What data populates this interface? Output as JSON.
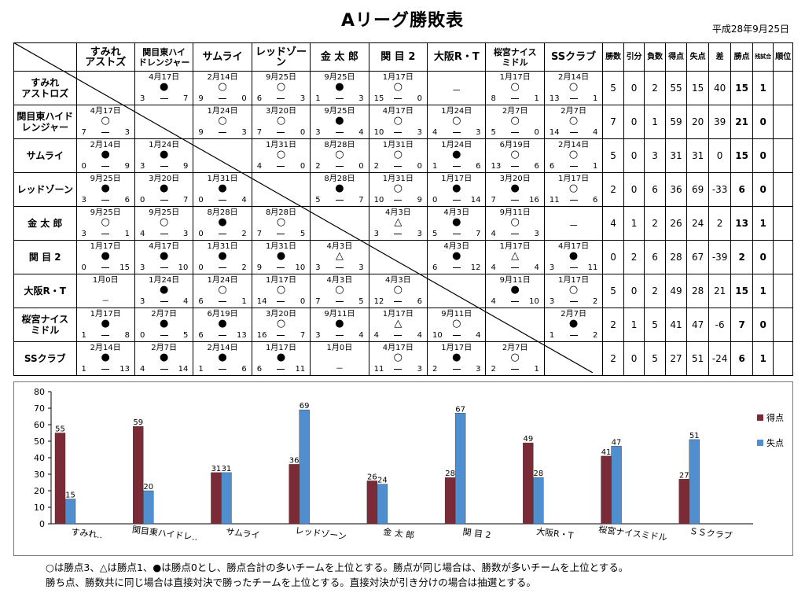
{
  "title": "Aリーグ勝敗表",
  "date": "平成28年9月25日",
  "columns": [
    "すみれ\nアストズ",
    "関目東ハイ\nドレンジャー",
    "サムライ",
    "レッドゾーン",
    "金 太 郎",
    "関 目 2",
    "大阪R・T",
    "桜宮ナイス\nミドル",
    "SSクラブ"
  ],
  "stat_headers": [
    "勝数",
    "引分",
    "負数",
    "得点",
    "失点",
    "差",
    "勝点",
    "残試合",
    "順位"
  ],
  "teams": [
    {
      "name": "すみれ\nアストロズ",
      "cells": [
        null,
        {
          "date": "4月17日",
          "mark": "●",
          "l": "3",
          "r": "7"
        },
        {
          "date": "2月14日",
          "mark": "○",
          "l": "9",
          "r": "0"
        },
        {
          "date": "9月25日",
          "mark": "○",
          "l": "6",
          "r": "3"
        },
        {
          "date": "9月25日",
          "mark": "●",
          "l": "1",
          "r": "3"
        },
        {
          "date": "1月17日",
          "mark": "○",
          "l": "15",
          "r": "0"
        },
        {
          "center": "－"
        },
        {
          "date": "1月17日",
          "mark": "○",
          "l": "8",
          "r": "1"
        },
        {
          "date": "2月14日",
          "mark": "○",
          "l": "13",
          "r": "1"
        }
      ],
      "stats": [
        "5",
        "0",
        "2",
        "55",
        "15",
        "40",
        "15",
        "1",
        ""
      ]
    },
    {
      "name": "関目東ハイド\nレンジャー",
      "cells": [
        {
          "date": "4月17日",
          "mark": "○",
          "l": "7",
          "r": "3"
        },
        null,
        {
          "date": "1月24日",
          "mark": "○",
          "l": "9",
          "r": "3"
        },
        {
          "date": "3月20日",
          "mark": "○",
          "l": "7",
          "r": "0"
        },
        {
          "date": "9月25日",
          "mark": "●",
          "l": "3",
          "r": "4"
        },
        {
          "date": "4月17日",
          "mark": "○",
          "l": "10",
          "r": "3"
        },
        {
          "date": "1月24日",
          "mark": "○",
          "l": "4",
          "r": "3"
        },
        {
          "date": "2月7日",
          "mark": "○",
          "l": "5",
          "r": "0"
        },
        {
          "date": "2月7日",
          "mark": "○",
          "l": "14",
          "r": "4"
        }
      ],
      "stats": [
        "7",
        "0",
        "1",
        "59",
        "20",
        "39",
        "21",
        "0",
        ""
      ]
    },
    {
      "name": "サムライ",
      "cells": [
        {
          "date": "2月14日",
          "mark": "●",
          "l": "0",
          "r": "9"
        },
        {
          "date": "1月24日",
          "mark": "●",
          "l": "3",
          "r": "9"
        },
        null,
        {
          "date": "1月31日",
          "mark": "○",
          "l": "4",
          "r": "0"
        },
        {
          "date": "8月28日",
          "mark": "○",
          "l": "2",
          "r": "0"
        },
        {
          "date": "1月31日",
          "mark": "○",
          "l": "2",
          "r": "0"
        },
        {
          "date": "1月24日",
          "mark": "●",
          "l": "1",
          "r": "6"
        },
        {
          "date": "6月19日",
          "mark": "○",
          "l": "13",
          "r": "6"
        },
        {
          "date": "2月14日",
          "mark": "○",
          "l": "6",
          "r": "1"
        }
      ],
      "stats": [
        "5",
        "0",
        "3",
        "31",
        "31",
        "0",
        "15",
        "0",
        ""
      ]
    },
    {
      "name": "レッドゾーン",
      "cells": [
        {
          "date": "9月25日",
          "mark": "●",
          "l": "3",
          "r": "6"
        },
        {
          "date": "3月20日",
          "mark": "●",
          "l": "0",
          "r": "7"
        },
        {
          "date": "1月31日",
          "mark": "●",
          "l": "0",
          "r": "4"
        },
        null,
        {
          "date": "8月28日",
          "mark": "●",
          "l": "5",
          "r": "7"
        },
        {
          "date": "1月31日",
          "mark": "○",
          "l": "10",
          "r": "9"
        },
        {
          "date": "1月17日",
          "mark": "●",
          "l": "0",
          "r": "14"
        },
        {
          "date": "3月20日",
          "mark": "●",
          "l": "7",
          "r": "16"
        },
        {
          "date": "1月17日",
          "mark": "○",
          "l": "11",
          "r": "6"
        }
      ],
      "stats": [
        "2",
        "0",
        "6",
        "36",
        "69",
        "-33",
        "6",
        "0",
        ""
      ]
    },
    {
      "name": "金 太 郎",
      "cells": [
        {
          "date": "9月25日",
          "mark": "○",
          "l": "3",
          "r": "1"
        },
        {
          "date": "9月25日",
          "mark": "○",
          "l": "4",
          "r": "3"
        },
        {
          "date": "8月28日",
          "mark": "●",
          "l": "0",
          "r": "2"
        },
        {
          "date": "8月28日",
          "mark": "○",
          "l": "7",
          "r": "5"
        },
        null,
        {
          "date": "4月3日",
          "mark": "△",
          "l": "3",
          "r": "3"
        },
        {
          "date": "4月3日",
          "mark": "●",
          "l": "5",
          "r": "7"
        },
        {
          "date": "9月11日",
          "mark": "○",
          "l": "4",
          "r": "3"
        },
        {
          "center": "－"
        }
      ],
      "stats": [
        "4",
        "1",
        "2",
        "26",
        "24",
        "2",
        "13",
        "1",
        ""
      ]
    },
    {
      "name": "関 目 2",
      "cells": [
        {
          "date": "1月17日",
          "mark": "●",
          "l": "0",
          "r": "15"
        },
        {
          "date": "4月17日",
          "mark": "●",
          "l": "3",
          "r": "10"
        },
        {
          "date": "1月31日",
          "mark": "●",
          "l": "0",
          "r": "2"
        },
        {
          "date": "1月31日",
          "mark": "●",
          "l": "9",
          "r": "10"
        },
        {
          "date": "4月3日",
          "mark": "△",
          "l": "3",
          "r": "3"
        },
        null,
        {
          "date": "4月3日",
          "mark": "●",
          "l": "6",
          "r": "12"
        },
        {
          "date": "1月17日",
          "mark": "△",
          "l": "4",
          "r": "4"
        },
        {
          "date": "4月17日",
          "mark": "●",
          "l": "3",
          "r": "11"
        }
      ],
      "stats": [
        "0",
        "2",
        "6",
        "28",
        "67",
        "-39",
        "2",
        "0",
        ""
      ]
    },
    {
      "name": "大阪R・T",
      "cells": [
        {
          "date": "1月0日",
          "dashonly": "－"
        },
        {
          "date": "1月24日",
          "mark": "●",
          "l": "3",
          "r": "4"
        },
        {
          "date": "1月24日",
          "mark": "○",
          "l": "6",
          "r": "1"
        },
        {
          "date": "1月17日",
          "mark": "○",
          "l": "14",
          "r": "0"
        },
        {
          "date": "4月3日",
          "mark": "○",
          "l": "7",
          "r": "5"
        },
        {
          "date": "4月3日",
          "mark": "○",
          "l": "12",
          "r": "6"
        },
        null,
        {
          "date": "9月11日",
          "mark": "●",
          "l": "4",
          "r": "10"
        },
        {
          "date": "1月17日",
          "mark": "○",
          "l": "3",
          "r": "2"
        }
      ],
      "stats": [
        "5",
        "0",
        "2",
        "49",
        "28",
        "21",
        "15",
        "1",
        ""
      ]
    },
    {
      "name": "桜宮ナイス\nミドル",
      "cells": [
        {
          "date": "1月17日",
          "mark": "●",
          "l": "1",
          "r": "8"
        },
        {
          "date": "2月7日",
          "mark": "●",
          "l": "0",
          "r": "5"
        },
        {
          "date": "6月19日",
          "mark": "●",
          "l": "6",
          "r": "13"
        },
        {
          "date": "3月20日",
          "mark": "○",
          "l": "16",
          "r": "7"
        },
        {
          "date": "9月11日",
          "mark": "●",
          "l": "3",
          "r": "4"
        },
        {
          "date": "1月17日",
          "mark": "△",
          "l": "4",
          "r": "4"
        },
        {
          "date": "9月11日",
          "mark": "○",
          "l": "10",
          "r": "4"
        },
        null,
        {
          "date": "2月7日",
          "mark": "●",
          "l": "1",
          "r": "2"
        }
      ],
      "stats": [
        "2",
        "1",
        "5",
        "41",
        "47",
        "-6",
        "7",
        "0",
        ""
      ]
    },
    {
      "name": "SSクラブ",
      "cells": [
        {
          "date": "2月14日",
          "mark": "●",
          "l": "1",
          "r": "13"
        },
        {
          "date": "2月7日",
          "mark": "●",
          "l": "4",
          "r": "14"
        },
        {
          "date": "2月14日",
          "mark": "●",
          "l": "1",
          "r": "6"
        },
        {
          "date": "1月17日",
          "mark": "●",
          "l": "6",
          "r": "11"
        },
        {
          "date": "1月0日",
          "dashonly": "－"
        },
        {
          "date": "4月17日",
          "mark": "○",
          "l": "11",
          "r": "3"
        },
        {
          "date": "1月17日",
          "mark": "●",
          "l": "2",
          "r": "3"
        },
        {
          "date": "2月7日",
          "mark": "○",
          "l": "2",
          "r": "1"
        },
        null
      ],
      "stats": [
        "2",
        "0",
        "5",
        "27",
        "51",
        "-24",
        "6",
        "1",
        ""
      ]
    }
  ],
  "chart_data": {
    "type": "bar",
    "categories": [
      "すみれ..",
      "関目東ハイドレ..",
      "サムライ",
      "レッドゾーン",
      "金 太 郎",
      "関 目 2",
      "大阪R・T",
      "桜宮ナイスミドル",
      "ＳＳクラブ"
    ],
    "series": [
      {
        "name": "得点",
        "color": "#7b2b35",
        "values": [
          55,
          59,
          31,
          36,
          26,
          28,
          49,
          41,
          27
        ]
      },
      {
        "name": "失点",
        "color": "#4f8fd0",
        "values": [
          15,
          20,
          31,
          69,
          24,
          67,
          28,
          47,
          51
        ]
      }
    ],
    "ylim": [
      0,
      80
    ],
    "yticks": [
      "0",
      "10",
      "20",
      "30",
      "40",
      "50",
      "60",
      "70",
      "80"
    ],
    "legend_position": "right"
  },
  "notes": [
    "○は勝点3、△は勝点1、●は勝点0とし、勝点合計の多いチームを上位とする。勝点が同じ場合は、勝数が多いチームを上位とする。",
    "勝ち点、勝数共に同じ場合は直接対決で勝ったチームを上位とする。直接対決が引き分けの場合は抽選とする。"
  ]
}
